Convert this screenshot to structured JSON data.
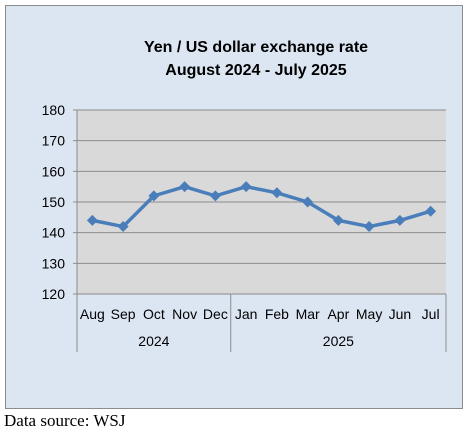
{
  "chart_data": {
    "type": "line",
    "title_line1": "Yen / US dollar exchange rate",
    "title_line2": "August 2024 - July 2025",
    "categories": [
      "Aug",
      "Sep",
      "Oct",
      "Nov",
      "Dec",
      "Jan",
      "Feb",
      "Mar",
      "Apr",
      "May",
      "Jun",
      "Jul"
    ],
    "years": [
      {
        "label": "2024",
        "start": 0,
        "end": 4
      },
      {
        "label": "2025",
        "start": 5,
        "end": 11
      }
    ],
    "values": [
      144,
      142,
      152,
      155,
      152,
      155,
      153,
      150,
      144,
      142,
      144,
      147
    ],
    "ylim": [
      120,
      180
    ],
    "yticks": [
      120,
      130,
      140,
      150,
      160,
      170,
      180
    ],
    "grid": true,
    "colors": {
      "line": "#4a7ebb",
      "plot_bg": "#d9d9d9",
      "panel_bg": "#dce6f2",
      "grid": "#8c8c8c"
    }
  },
  "source": "Data source: WSJ"
}
